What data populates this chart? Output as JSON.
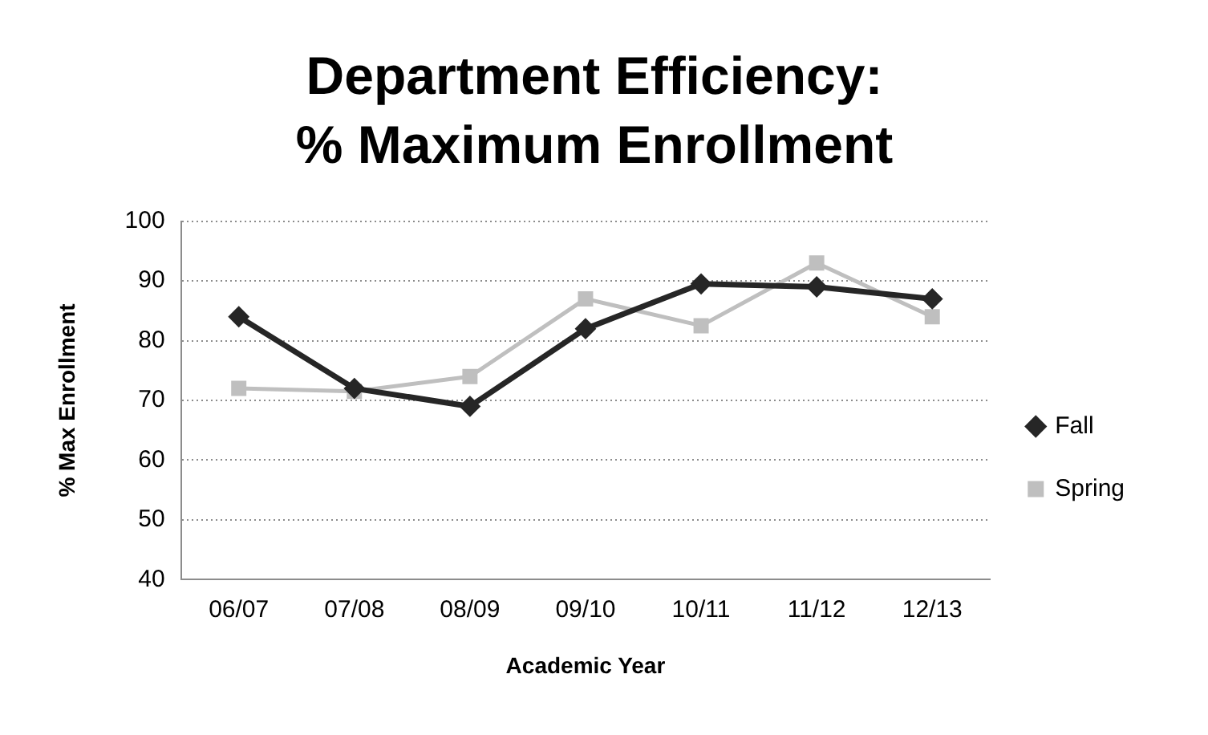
{
  "chart_data": {
    "type": "line",
    "title": "Department Efficiency: % Maximum Enrollment",
    "xlabel": "Academic Year",
    "ylabel": "% Max Enrollment",
    "categories": [
      "06/07",
      "07/08",
      "08/09",
      "09/10",
      "10/11",
      "11/12",
      "12/13"
    ],
    "series": [
      {
        "name": "Fall",
        "color": "#262626",
        "marker": "diamond",
        "values": [
          84,
          72,
          69,
          82,
          89.5,
          89,
          87
        ]
      },
      {
        "name": "Spring",
        "color": "#bfbfbf",
        "marker": "square",
        "values": [
          72,
          71.5,
          74,
          87,
          82.5,
          93,
          84
        ]
      }
    ],
    "ylim": [
      40,
      100
    ],
    "yticks": [
      40,
      50,
      60,
      70,
      80,
      90,
      100
    ],
    "grid": "y",
    "legend": "right",
    "line_style": "solid"
  }
}
